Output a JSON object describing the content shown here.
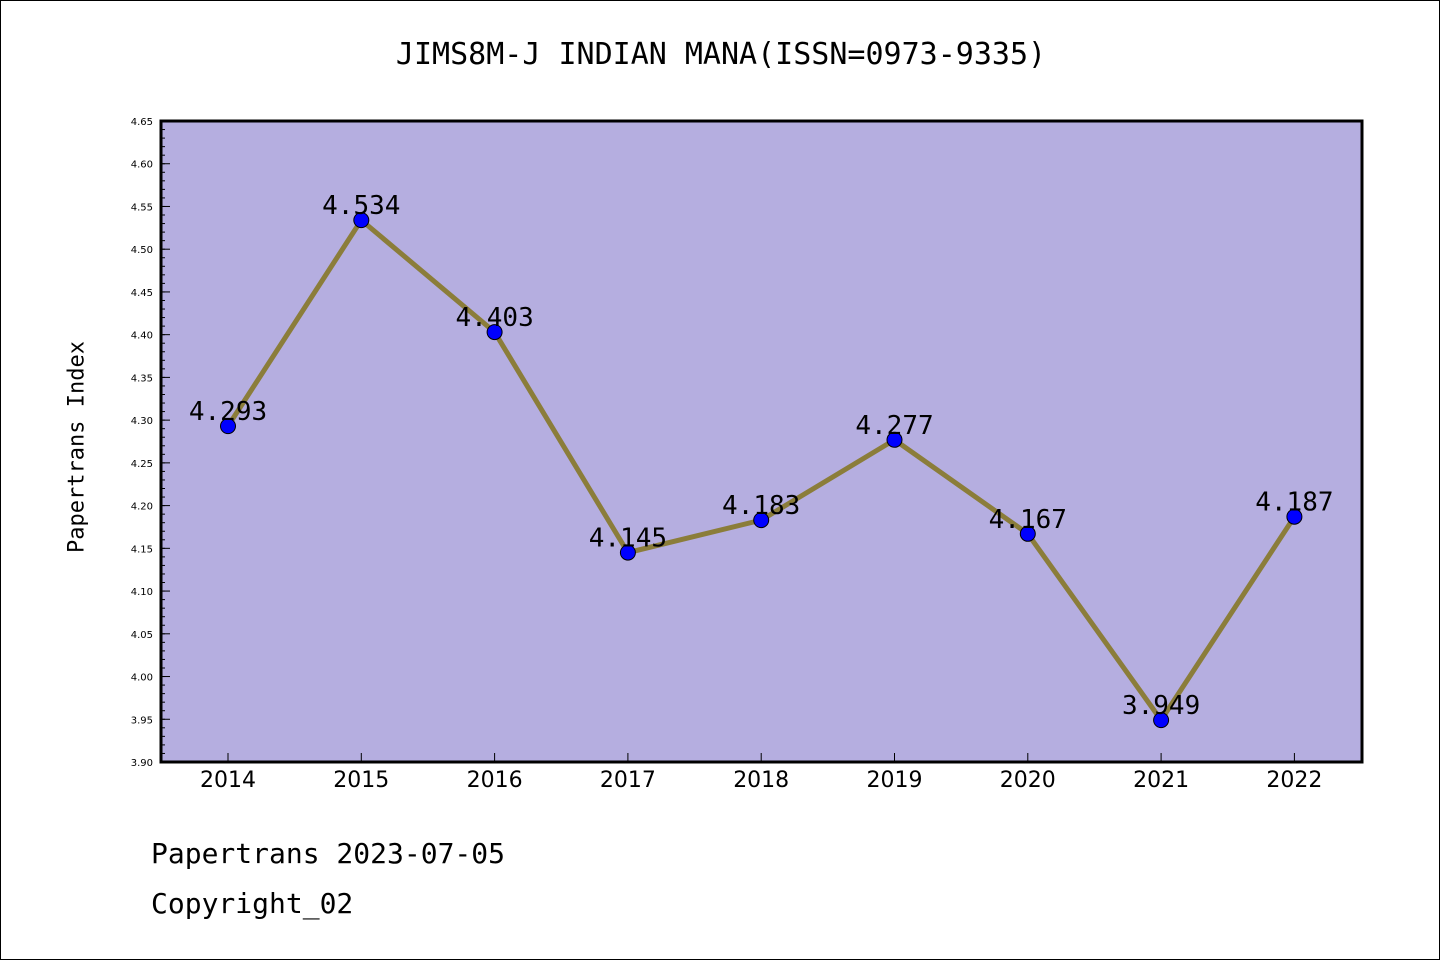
{
  "chart_data": {
    "type": "line",
    "title": "JIMS8M-J INDIAN MANA(ISSN=0973-9335)",
    "xlabel": "",
    "ylabel": "Papertrans Index",
    "categories": [
      "2014",
      "2015",
      "2016",
      "2017",
      "2018",
      "2019",
      "2020",
      "2021",
      "2022"
    ],
    "values": [
      4.293,
      4.534,
      4.403,
      4.145,
      4.183,
      4.277,
      4.167,
      3.949,
      4.187
    ],
    "data_labels": [
      "4.293",
      "4.534",
      "4.403",
      "4.145",
      "4.183",
      "4.277",
      "4.167",
      "3.949",
      "4.187"
    ],
    "ylim": [
      3.9,
      4.65
    ],
    "yticks": [
      "3.90",
      "3.95",
      "4.00",
      "4.05",
      "4.10",
      "4.15",
      "4.20",
      "4.25",
      "4.30",
      "4.35",
      "4.40",
      "4.45",
      "4.50",
      "4.55",
      "4.60",
      "4.65"
    ],
    "grid": false,
    "colors": {
      "plot_background": "#b5aee0",
      "line": "#8b7d3a",
      "marker": "#0000ff"
    }
  },
  "footer": {
    "line1": "Papertrans 2023-07-05",
    "line2": "Copyright_02"
  }
}
